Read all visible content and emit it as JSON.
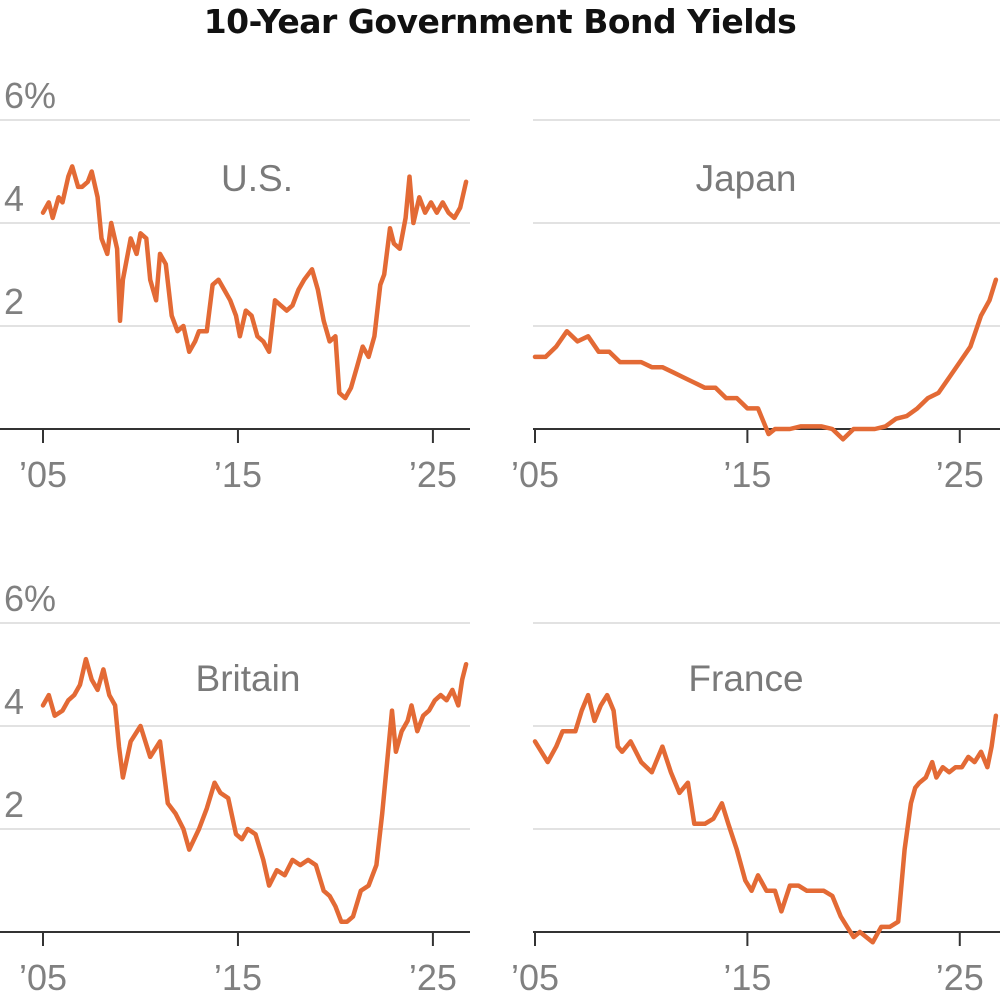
{
  "title": "10-Year Government Bond Yields",
  "chart_data": [
    {
      "type": "line",
      "label": "U.S.",
      "color": "#e36a35",
      "ylim": [
        0,
        6
      ],
      "y_ticks": [
        2,
        4,
        6
      ],
      "y_tick_labels": [
        "2",
        "4",
        "6%"
      ],
      "xlim": [
        2004.9,
        2026.8
      ],
      "x_ticks": [
        2005,
        2015,
        2025
      ],
      "x_tick_labels": [
        "’05",
        "’15",
        "’25"
      ],
      "series": [
        {
          "x": [
            2005.0,
            2005.3,
            2005.5,
            2005.8,
            2006.0,
            2006.3,
            2006.5,
            2006.8,
            2007.0,
            2007.3,
            2007.5,
            2007.8,
            2008.0,
            2008.3,
            2008.5,
            2008.8,
            2008.95,
            2009.1,
            2009.3,
            2009.5,
            2009.8,
            2010.0,
            2010.3,
            2010.5,
            2010.8,
            2011.0,
            2011.3,
            2011.6,
            2011.9,
            2012.2,
            2012.5,
            2012.8,
            2013.0,
            2013.4,
            2013.7,
            2014.0,
            2014.3,
            2014.6,
            2014.9,
            2015.1,
            2015.4,
            2015.7,
            2016.0,
            2016.3,
            2016.6,
            2016.9,
            2017.2,
            2017.5,
            2017.8,
            2018.1,
            2018.4,
            2018.8,
            2019.1,
            2019.4,
            2019.7,
            2020.0,
            2020.2,
            2020.5,
            2020.8,
            2021.1,
            2021.4,
            2021.7,
            2022.0,
            2022.3,
            2022.5,
            2022.8,
            2023.0,
            2023.3,
            2023.6,
            2023.8,
            2024.0,
            2024.3,
            2024.6,
            2024.9,
            2025.2,
            2025.5,
            2025.8,
            2026.1,
            2026.4,
            2026.7
          ],
          "y": [
            4.2,
            4.4,
            4.1,
            4.5,
            4.4,
            4.9,
            5.1,
            4.7,
            4.7,
            4.8,
            5.0,
            4.5,
            3.7,
            3.4,
            4.0,
            3.5,
            2.1,
            2.9,
            3.3,
            3.7,
            3.4,
            3.8,
            3.7,
            2.9,
            2.5,
            3.4,
            3.2,
            2.2,
            1.9,
            2.0,
            1.5,
            1.7,
            1.9,
            1.9,
            2.8,
            2.9,
            2.7,
            2.5,
            2.2,
            1.8,
            2.3,
            2.2,
            1.8,
            1.7,
            1.5,
            2.5,
            2.4,
            2.3,
            2.4,
            2.7,
            2.9,
            3.1,
            2.7,
            2.1,
            1.7,
            1.8,
            0.7,
            0.6,
            0.8,
            1.2,
            1.6,
            1.4,
            1.8,
            2.8,
            3.0,
            3.9,
            3.6,
            3.5,
            4.1,
            4.9,
            4.0,
            4.5,
            4.2,
            4.4,
            4.2,
            4.4,
            4.2,
            4.1,
            4.3,
            4.8
          ]
        }
      ]
    },
    {
      "type": "line",
      "label": "Japan",
      "color": "#e36a35",
      "ylim": [
        0,
        6
      ],
      "y_ticks": [
        2,
        4,
        6
      ],
      "xlim": [
        2004.9,
        2026.8
      ],
      "x_ticks": [
        2005,
        2015,
        2025
      ],
      "x_tick_labels": [
        "’05",
        "’15",
        "’25"
      ],
      "series": [
        {
          "x": [
            2005.0,
            2005.5,
            2006.0,
            2006.5,
            2007.0,
            2007.5,
            2008.0,
            2008.5,
            2009.0,
            2009.5,
            2010.0,
            2010.5,
            2011.0,
            2011.5,
            2012.0,
            2012.5,
            2013.0,
            2013.5,
            2014.0,
            2014.5,
            2015.0,
            2015.5,
            2016.0,
            2016.3,
            2016.7,
            2017.0,
            2017.5,
            2018.0,
            2018.5,
            2019.0,
            2019.5,
            2020.0,
            2020.5,
            2021.0,
            2021.5,
            2022.0,
            2022.5,
            2023.0,
            2023.5,
            2024.0,
            2024.5,
            2025.0,
            2025.5,
            2026.0,
            2026.4,
            2026.7
          ],
          "y": [
            1.4,
            1.4,
            1.6,
            1.9,
            1.7,
            1.8,
            1.5,
            1.5,
            1.3,
            1.3,
            1.3,
            1.2,
            1.2,
            1.1,
            1.0,
            0.9,
            0.8,
            0.8,
            0.6,
            0.6,
            0.4,
            0.4,
            -0.1,
            0.0,
            0.0,
            0.0,
            0.05,
            0.05,
            0.05,
            0.0,
            -0.2,
            0.0,
            0.0,
            0.0,
            0.05,
            0.2,
            0.25,
            0.4,
            0.6,
            0.7,
            1.0,
            1.3,
            1.6,
            2.2,
            2.5,
            2.9
          ]
        }
      ]
    },
    {
      "type": "line",
      "label": "Britain",
      "color": "#e36a35",
      "ylim": [
        0,
        6
      ],
      "y_ticks": [
        2,
        4,
        6
      ],
      "y_tick_labels": [
        "2",
        "4",
        "6%"
      ],
      "xlim": [
        2004.9,
        2026.8
      ],
      "x_ticks": [
        2005,
        2015,
        2025
      ],
      "x_tick_labels": [
        "’05",
        "’15",
        "’25"
      ],
      "series": [
        {
          "x": [
            2005.0,
            2005.3,
            2005.6,
            2006.0,
            2006.3,
            2006.6,
            2006.9,
            2007.2,
            2007.5,
            2007.8,
            2008.1,
            2008.4,
            2008.7,
            2008.9,
            2009.1,
            2009.5,
            2010.0,
            2010.5,
            2011.0,
            2011.4,
            2011.8,
            2012.2,
            2012.5,
            2013.0,
            2013.4,
            2013.8,
            2014.1,
            2014.5,
            2014.9,
            2015.2,
            2015.5,
            2015.9,
            2016.3,
            2016.6,
            2017.0,
            2017.4,
            2017.8,
            2018.2,
            2018.6,
            2019.0,
            2019.4,
            2019.7,
            2020.0,
            2020.3,
            2020.6,
            2020.9,
            2021.3,
            2021.7,
            2022.1,
            2022.4,
            2022.7,
            2022.9,
            2023.1,
            2023.4,
            2023.7,
            2023.9,
            2024.2,
            2024.5,
            2024.8,
            2025.1,
            2025.4,
            2025.7,
            2026.0,
            2026.3,
            2026.5,
            2026.7
          ],
          "y": [
            4.4,
            4.6,
            4.2,
            4.3,
            4.5,
            4.6,
            4.8,
            5.3,
            4.9,
            4.7,
            5.1,
            4.6,
            4.4,
            3.6,
            3.0,
            3.7,
            4.0,
            3.4,
            3.7,
            2.5,
            2.3,
            2.0,
            1.6,
            2.0,
            2.4,
            2.9,
            2.7,
            2.6,
            1.9,
            1.8,
            2.0,
            1.9,
            1.4,
            0.9,
            1.2,
            1.1,
            1.4,
            1.3,
            1.4,
            1.3,
            0.8,
            0.7,
            0.5,
            0.2,
            0.2,
            0.3,
            0.8,
            0.9,
            1.3,
            2.3,
            3.5,
            4.3,
            3.5,
            3.9,
            4.1,
            4.4,
            3.9,
            4.2,
            4.3,
            4.5,
            4.6,
            4.5,
            4.7,
            4.4,
            4.9,
            5.2
          ]
        }
      ]
    },
    {
      "type": "line",
      "label": "France",
      "color": "#e36a35",
      "ylim": [
        0,
        6
      ],
      "y_ticks": [
        2,
        4,
        6
      ],
      "xlim": [
        2004.9,
        2026.8
      ],
      "x_ticks": [
        2005,
        2015,
        2025
      ],
      "x_tick_labels": [
        "’05",
        "’15",
        "’25"
      ],
      "series": [
        {
          "x": [
            2005.0,
            2005.3,
            2005.6,
            2006.0,
            2006.3,
            2006.6,
            2006.9,
            2007.2,
            2007.5,
            2007.8,
            2008.1,
            2008.4,
            2008.7,
            2008.9,
            2009.1,
            2009.5,
            2010.0,
            2010.5,
            2011.0,
            2011.4,
            2011.8,
            2012.2,
            2012.5,
            2013.0,
            2013.4,
            2013.8,
            2014.1,
            2014.5,
            2014.9,
            2015.2,
            2015.5,
            2015.9,
            2016.3,
            2016.6,
            2017.0,
            2017.4,
            2017.8,
            2018.2,
            2018.6,
            2019.0,
            2019.4,
            2019.7,
            2020.0,
            2020.3,
            2020.6,
            2020.9,
            2021.3,
            2021.7,
            2022.1,
            2022.4,
            2022.7,
            2022.9,
            2023.1,
            2023.4,
            2023.7,
            2023.9,
            2024.2,
            2024.5,
            2024.8,
            2025.1,
            2025.4,
            2025.7,
            2026.0,
            2026.3,
            2026.5,
            2026.7
          ],
          "y": [
            3.7,
            3.5,
            3.3,
            3.6,
            3.9,
            3.9,
            3.9,
            4.3,
            4.6,
            4.1,
            4.4,
            4.6,
            4.3,
            3.6,
            3.5,
            3.7,
            3.3,
            3.1,
            3.6,
            3.1,
            2.7,
            2.9,
            2.1,
            2.1,
            2.2,
            2.5,
            2.1,
            1.6,
            1.0,
            0.8,
            1.1,
            0.8,
            0.8,
            0.4,
            0.9,
            0.9,
            0.8,
            0.8,
            0.8,
            0.7,
            0.3,
            0.1,
            -0.1,
            0.0,
            -0.1,
            -0.2,
            0.1,
            0.1,
            0.2,
            1.6,
            2.5,
            2.8,
            2.9,
            3.0,
            3.3,
            3.0,
            3.2,
            3.1,
            3.2,
            3.2,
            3.4,
            3.3,
            3.5,
            3.2,
            3.6,
            4.2
          ]
        }
      ]
    }
  ]
}
